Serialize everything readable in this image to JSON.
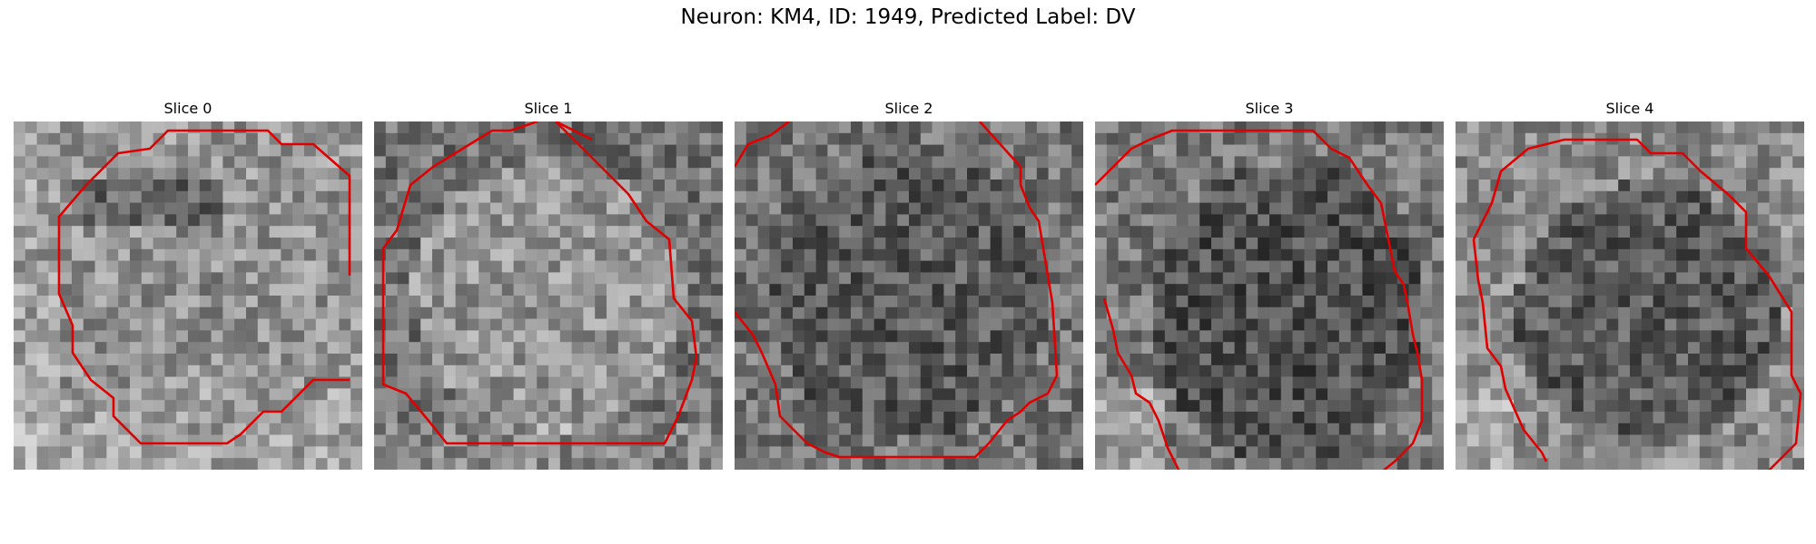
{
  "figure": {
    "title": "Neuron: KM4, ID: 1949, Predicted Label: DV"
  },
  "slices": [
    {
      "title": "Slice 0",
      "tone": 150
    },
    {
      "title": "Slice 1",
      "tone": 140
    },
    {
      "title": "Slice 2",
      "tone": 95
    },
    {
      "title": "Slice 3",
      "tone": 95
    },
    {
      "title": "Slice 4",
      "tone": 110
    }
  ],
  "colors": {
    "contour": "#e00000",
    "background": "#ffffff"
  }
}
